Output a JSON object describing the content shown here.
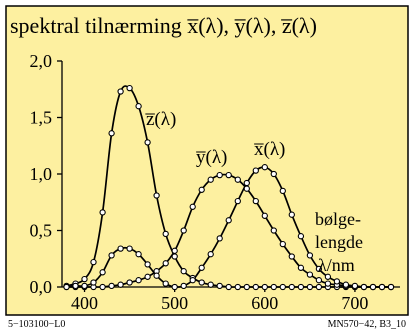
{
  "chart_data": {
    "type": "line",
    "title": "spektral tilnærming  x̅(λ),  y̅(λ),  z̅(λ)",
    "xlabel": "λ/nm",
    "ylabel": "",
    "xlim": [
      375,
      750
    ],
    "ylim": [
      0,
      2.0
    ],
    "xticks": [
      400,
      500,
      600,
      700
    ],
    "yticks": [
      0,
      0.5,
      1.0,
      1.5,
      2.0
    ],
    "ytick_labels": [
      "0,0",
      "0,5",
      "1,0",
      "1,5",
      "2,0"
    ],
    "grid": false,
    "legend": "none",
    "x": [
      380,
      390,
      400,
      410,
      420,
      430,
      440,
      450,
      460,
      470,
      480,
      490,
      500,
      510,
      520,
      530,
      540,
      550,
      560,
      570,
      580,
      590,
      600,
      610,
      620,
      630,
      640,
      650,
      660,
      670,
      680,
      690,
      700,
      710,
      720,
      730,
      740
    ],
    "series": [
      {
        "name": "z̅(λ)",
        "label": "z̅(λ)",
        "values": [
          0.01,
          0.03,
          0.07,
          0.22,
          0.66,
          1.36,
          1.73,
          1.76,
          1.6,
          1.28,
          0.81,
          0.47,
          0.27,
          0.14,
          0.08,
          0.04,
          0.02,
          0.01,
          0.0,
          0.0,
          0.0,
          0.0,
          0.0,
          0.0,
          0.0,
          0.0,
          0.0,
          0.0,
          0.0,
          0.0,
          0.0,
          0.0,
          0.0,
          0.0,
          0.0,
          0.0,
          0.0
        ]
      },
      {
        "name": "y̅(λ)",
        "label": "y̅(λ)",
        "values": [
          0.0,
          0.0,
          0.0,
          0.0,
          0.0,
          0.01,
          0.02,
          0.04,
          0.06,
          0.09,
          0.14,
          0.21,
          0.32,
          0.5,
          0.71,
          0.86,
          0.95,
          0.99,
          0.99,
          0.95,
          0.87,
          0.76,
          0.63,
          0.5,
          0.38,
          0.27,
          0.17,
          0.11,
          0.06,
          0.03,
          0.02,
          0.01,
          0.0,
          0.0,
          0.0,
          0.0,
          0.0
        ]
      },
      {
        "name": "x̅(λ)",
        "label": "x̅(λ)",
        "values": [
          0.0,
          0.01,
          0.01,
          0.04,
          0.13,
          0.28,
          0.34,
          0.34,
          0.29,
          0.2,
          0.1,
          0.03,
          0.0,
          0.01,
          0.06,
          0.17,
          0.29,
          0.43,
          0.59,
          0.76,
          0.92,
          1.03,
          1.06,
          1.0,
          0.85,
          0.64,
          0.45,
          0.28,
          0.16,
          0.09,
          0.05,
          0.02,
          0.01,
          0.0,
          0.0,
          0.0,
          0.0
        ]
      }
    ],
    "annotation": [
      "bølge-",
      "lengde",
      "λ/nm"
    ],
    "footer_left": "5−103100−L0",
    "footer_right": "MN570−42, B3_10"
  }
}
